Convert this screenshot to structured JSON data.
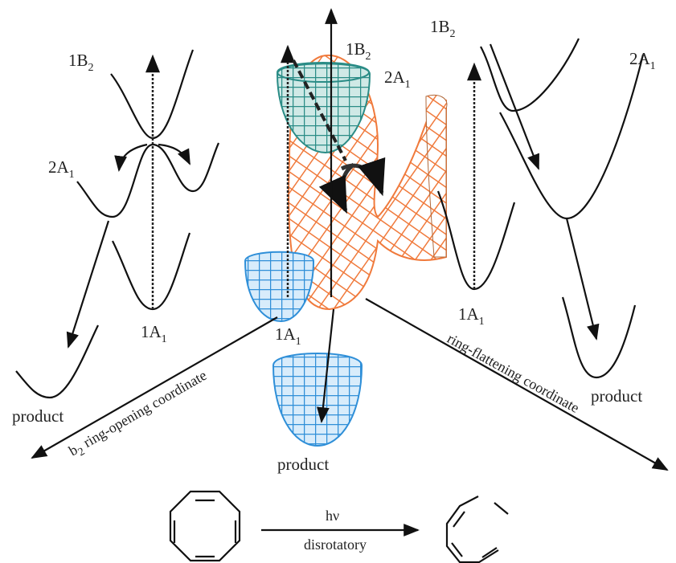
{
  "left_panel": {
    "states": [
      {
        "text": "1B",
        "sub": "2"
      },
      {
        "text": "2A",
        "sub": "1"
      },
      {
        "text": "1A",
        "sub": "1"
      }
    ],
    "product": "product"
  },
  "center_panel": {
    "states": [
      {
        "text": "1B",
        "sub": "2"
      },
      {
        "text": "2A",
        "sub": "1"
      },
      {
        "text": "1A",
        "sub": "1"
      }
    ],
    "product": "product"
  },
  "right_panel": {
    "states": [
      {
        "text": "1B",
        "sub": "2"
      },
      {
        "text": "2A",
        "sub": "1"
      },
      {
        "text": "1A",
        "sub": "1"
      }
    ],
    "product": "product"
  },
  "axes": {
    "ring_opening": {
      "prefix": "b",
      "sub": "2",
      "text": "ring-opening coordinate"
    },
    "ring_flattening": "ring-flattening coordinate"
  },
  "reaction": {
    "above_arrow": "hν",
    "below_arrow": "disrotatory"
  }
}
